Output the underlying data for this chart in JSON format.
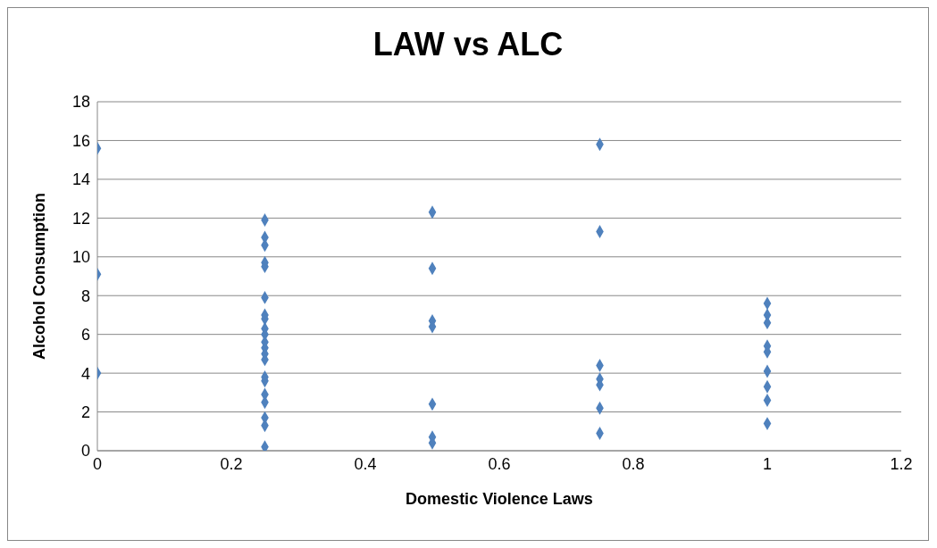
{
  "chart_data": {
    "type": "scatter",
    "title": "LAW vs ALC",
    "xlabel": "Domestic Violence  Laws",
    "ylabel": "Alcohol Consumption",
    "x": [
      0,
      0,
      0,
      0.25,
      0.25,
      0.25,
      0.25,
      0.25,
      0.25,
      0.25,
      0.25,
      0.25,
      0.25,
      0.25,
      0.25,
      0.25,
      0.25,
      0.25,
      0.25,
      0.25,
      0.25,
      0.25,
      0.25,
      0.25,
      0.5,
      0.5,
      0.5,
      0.5,
      0.5,
      0.5,
      0.5,
      0.75,
      0.75,
      0.75,
      0.75,
      0.75,
      0.75,
      0.75,
      1,
      1,
      1,
      1,
      1,
      1,
      1,
      1,
      1
    ],
    "values": [
      15.6,
      9.1,
      4.0,
      11.9,
      11.0,
      10.6,
      9.7,
      9.5,
      7.9,
      7.0,
      6.8,
      6.3,
      6.0,
      5.6,
      5.3,
      5.0,
      4.7,
      3.8,
      3.6,
      2.9,
      2.5,
      1.7,
      1.3,
      0.2,
      12.3,
      9.4,
      6.7,
      6.4,
      2.4,
      0.7,
      0.4,
      15.8,
      11.3,
      4.4,
      3.7,
      3.4,
      2.2,
      0.9,
      7.6,
      7.0,
      6.6,
      5.4,
      5.1,
      4.1,
      3.3,
      2.6,
      1.4
    ],
    "color": "#4f81bd",
    "marker": "diamond",
    "grid": "y",
    "legend": false,
    "xlim": [
      0,
      1.2
    ],
    "xticks": [
      0,
      0.2,
      0.4,
      0.6,
      0.8,
      1,
      1.2
    ],
    "ylim": [
      0,
      18
    ],
    "yticks": [
      0,
      2,
      4,
      6,
      8,
      10,
      12,
      14,
      16,
      18
    ]
  }
}
